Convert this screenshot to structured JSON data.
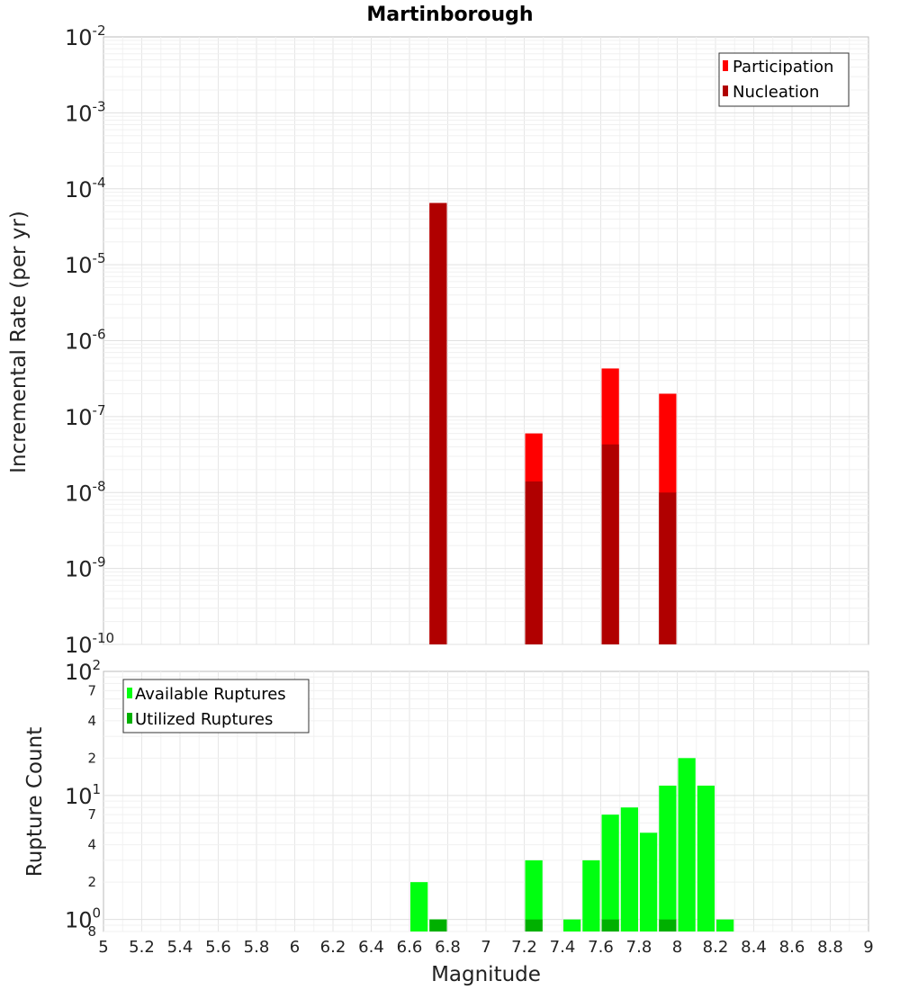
{
  "chart_data": [
    {
      "type": "bar",
      "title": "Martinborough",
      "xlabel": "",
      "ylabel": "Incremental Rate (per yr)",
      "y_scale": "log",
      "xlim": [
        5,
        9
      ],
      "ylim": [
        1e-10,
        0.01
      ],
      "y_ticks": [
        {
          "base": "10",
          "exp": "-2"
        },
        {
          "base": "10",
          "exp": "-3"
        },
        {
          "base": "10",
          "exp": "-4"
        },
        {
          "base": "10",
          "exp": "-5"
        },
        {
          "base": "10",
          "exp": "-6"
        },
        {
          "base": "10",
          "exp": "-7"
        },
        {
          "base": "10",
          "exp": "-8"
        },
        {
          "base": "10",
          "exp": "-9"
        },
        {
          "base": "10",
          "exp": "-10"
        }
      ],
      "bar_width": 0.1,
      "grid": true,
      "legend": "top-right",
      "series": [
        {
          "name": "Participation",
          "color": "#ff0000",
          "x": [
            6.75,
            7.25,
            7.65,
            7.95
          ],
          "values": [
            6.5e-05,
            6e-08,
            4.3e-07,
            2e-07
          ]
        },
        {
          "name": "Nucleation",
          "color": "#b00000",
          "x": [
            6.75,
            7.25,
            7.65,
            7.95
          ],
          "values": [
            6.5e-05,
            1.4e-08,
            4.3e-08,
            1e-08
          ]
        }
      ]
    },
    {
      "type": "bar",
      "title": "",
      "xlabel": "Magnitude",
      "ylabel": "Rupture Count",
      "y_scale": "log",
      "xlim": [
        5,
        9
      ],
      "ylim": [
        0.8,
        100
      ],
      "x_ticks": [
        "5",
        "5.2",
        "5.4",
        "5.6",
        "5.8",
        "6",
        "6.2",
        "6.4",
        "6.6",
        "6.8",
        "7",
        "7.2",
        "7.4",
        "7.6",
        "7.8",
        "8",
        "8.2",
        "8.4",
        "8.6",
        "8.8",
        "9"
      ],
      "y_major_ticks": [
        {
          "base": "10",
          "exp": "2",
          "value": 100
        },
        {
          "base": "10",
          "exp": "1",
          "value": 10
        },
        {
          "base": "10",
          "exp": "0",
          "value": 1
        }
      ],
      "y_minor_ticks": [
        {
          "label": "7",
          "value": 70
        },
        {
          "label": "4",
          "value": 40
        },
        {
          "label": "2",
          "value": 20
        },
        {
          "label": "7",
          "value": 7
        },
        {
          "label": "4",
          "value": 4
        },
        {
          "label": "2",
          "value": 2
        },
        {
          "label": "8",
          "value": 0.8
        }
      ],
      "bar_width": 0.1,
      "grid": true,
      "legend": "top-left",
      "series": [
        {
          "name": "Available Ruptures",
          "color": "#00ff10",
          "x": [
            6.65,
            6.75,
            7.25,
            7.45,
            7.55,
            7.65,
            7.75,
            7.85,
            7.95,
            8.05,
            8.15,
            8.25
          ],
          "values": [
            2,
            1,
            3,
            1,
            3,
            7,
            8,
            5,
            12,
            20,
            12,
            1
          ]
        },
        {
          "name": "Utilized Ruptures",
          "color": "#00b000",
          "x": [
            6.75,
            7.25,
            7.65,
            7.95
          ],
          "values": [
            1,
            1,
            1,
            1
          ]
        }
      ]
    }
  ]
}
